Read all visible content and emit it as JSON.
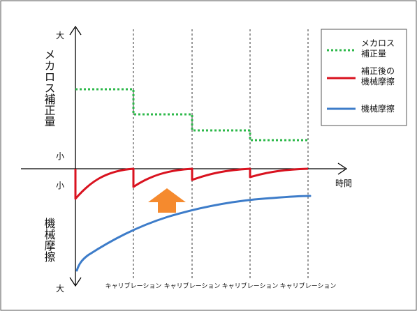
{
  "diagram": {
    "top_axis_label": "メカロス補正量",
    "bottom_axis_label": "機械摩擦",
    "y_top_max": "大",
    "y_top_min": "小",
    "y_bottom_min": "小",
    "y_bottom_max": "大",
    "x_axis_label": "時間",
    "calibrations": [
      "キャリブレーション",
      "キャリブレーション",
      "キャリブレーション",
      "キャリブレーション"
    ],
    "legend": [
      {
        "line1": "メカロス",
        "line2": "補正量",
        "color": "#2db84a",
        "style": "dotted"
      },
      {
        "line1": "補正後の",
        "line2": "機械摩擦",
        "color": "#d9121f",
        "style": "solid"
      },
      {
        "line1": "機械摩擦",
        "line2": "",
        "color": "#3d7cc9",
        "style": "solid"
      }
    ],
    "colors": {
      "arrow": "#f58a2e",
      "green": "#2db84a",
      "red": "#d9121f",
      "blue": "#3d7cc9"
    },
    "icons": {
      "arrow": "up-arrow-icon"
    }
  }
}
